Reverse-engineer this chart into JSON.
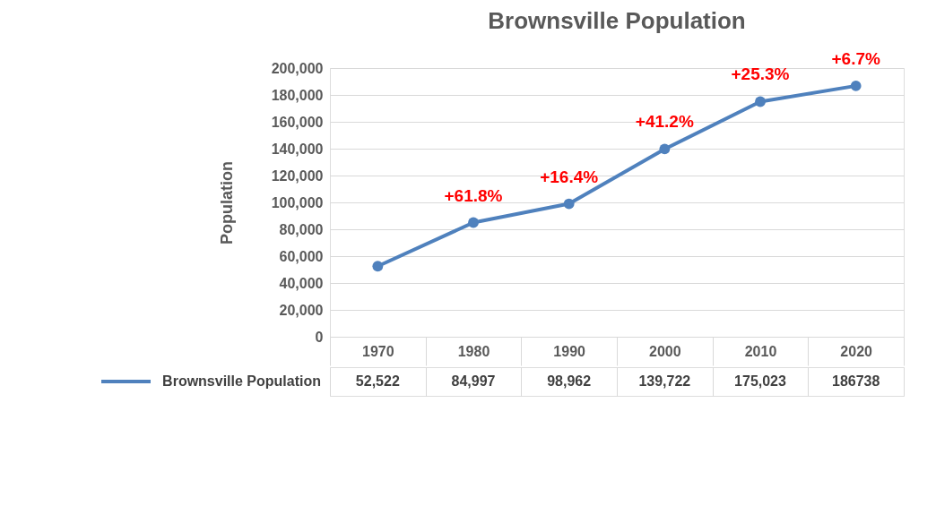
{
  "chart_data": {
    "type": "line",
    "title": "Brownsville Population",
    "ylabel": "Population",
    "categories": [
      "1970",
      "1980",
      "1990",
      "2000",
      "2010",
      "2020"
    ],
    "series": [
      {
        "name": "Brownsville Population",
        "color": "#4f81bd",
        "values": [
          52522,
          84997,
          98962,
          139722,
          175023,
          186738
        ],
        "value_labels": [
          "52,522",
          "84,997",
          "98,962",
          "139,722",
          "175,023",
          "186738"
        ]
      }
    ],
    "ylim": [
      0,
      200000
    ],
    "yticks": [
      0,
      {
        "value": 20000,
        "label": "20,000"
      },
      {
        "value": 40000,
        "label": "40,000"
      },
      {
        "value": 60000,
        "label": "60,000"
      },
      {
        "value": 80000,
        "label": "80,000"
      },
      {
        "value": 100000,
        "label": "100,000"
      },
      {
        "value": 120000,
        "label": "120,000"
      },
      {
        "value": 140000,
        "label": "140,000"
      },
      {
        "value": 160000,
        "label": "160,000"
      },
      {
        "value": 180000,
        "label": "180,000"
      },
      {
        "value": 200000,
        "label": "200,000"
      }
    ],
    "grid": "y",
    "legend": "bottom",
    "marker": "circle",
    "line_style": "solid",
    "annotations": [
      {
        "text": "+61.8%",
        "x": "1980",
        "y": 84997
      },
      {
        "text": "+16.4%",
        "x": "1990",
        "y": 98962
      },
      {
        "text": "+41.2%",
        "x": "2000",
        "y": 139722
      },
      {
        "text": "+25.3%",
        "x": "2010",
        "y": 175023
      },
      {
        "text": "+6.7%",
        "x": "2020",
        "y": 186738
      }
    ]
  }
}
